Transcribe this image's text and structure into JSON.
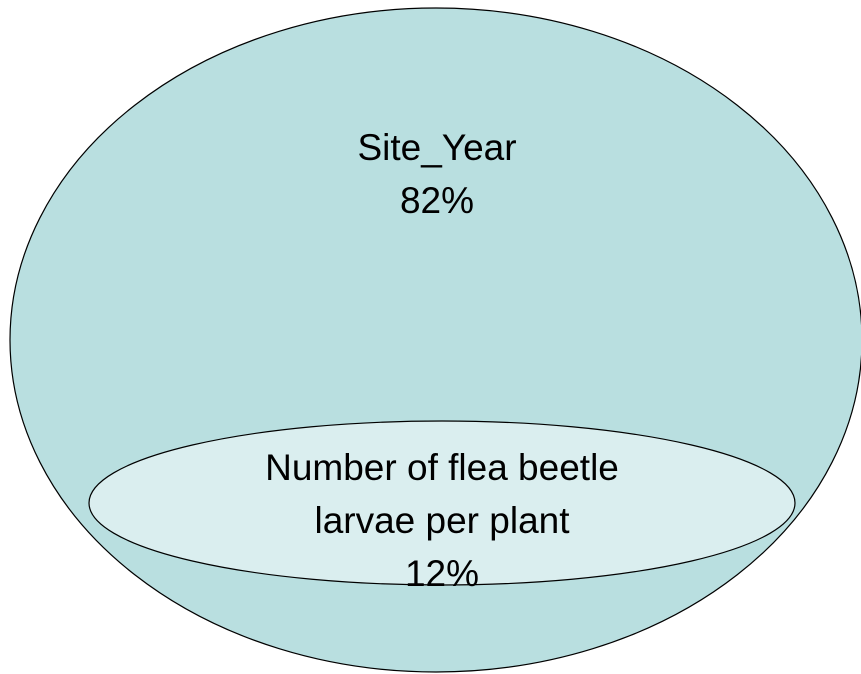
{
  "nodes": [
    {
      "label": [
        "Site_Year"
      ],
      "share": "82%"
    },
    {
      "label": [
        "Number of flea beetle",
        "larvae per plant"
      ],
      "share": "12%"
    }
  ]
}
